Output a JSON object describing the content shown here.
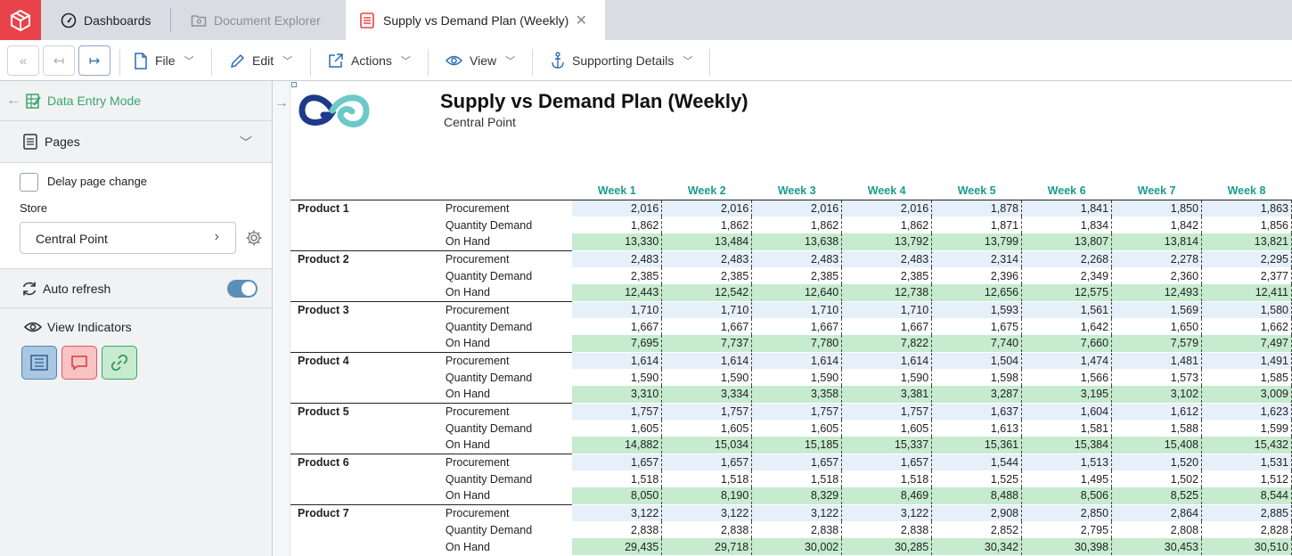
{
  "tabs": {
    "dashboards": "Dashboards",
    "document_explorer": "Document Explorer",
    "active": "Supply vs Demand Plan (Weekly)"
  },
  "toolbar": {
    "file": "File",
    "edit": "Edit",
    "actions": "Actions",
    "view": "View",
    "supporting": "Supporting Details"
  },
  "sidebar": {
    "mode": "Data Entry Mode",
    "pages": "Pages",
    "delay_label": "Delay page change",
    "store_label": "Store",
    "store_value": "Central Point",
    "auto_refresh": "Auto refresh",
    "auto_refresh_on": true,
    "view_indicators": "View Indicators"
  },
  "report": {
    "title": "Supply vs Demand Plan (Weekly)",
    "subtitle": "Central Point",
    "weeks": [
      "Week 1",
      "Week 2",
      "Week 3",
      "Week 4",
      "Week 5",
      "Week 6",
      "Week 7",
      "Week 8"
    ],
    "products": [
      {
        "name": "Product 1",
        "rows": [
          {
            "measure": "Procurement",
            "values": [
              "2,016",
              "2,016",
              "2,016",
              "2,016",
              "1,878",
              "1,841",
              "1,850",
              "1,863"
            ]
          },
          {
            "measure": "Quantity Demand",
            "values": [
              "1,862",
              "1,862",
              "1,862",
              "1,862",
              "1,871",
              "1,834",
              "1,842",
              "1,856"
            ]
          },
          {
            "measure": "On Hand",
            "values": [
              "13,330",
              "13,484",
              "13,638",
              "13,792",
              "13,799",
              "13,807",
              "13,814",
              "13,821"
            ]
          }
        ]
      },
      {
        "name": "Product 2",
        "rows": [
          {
            "measure": "Procurement",
            "values": [
              "2,483",
              "2,483",
              "2,483",
              "2,483",
              "2,314",
              "2,268",
              "2,278",
              "2,295"
            ]
          },
          {
            "measure": "Quantity Demand",
            "values": [
              "2,385",
              "2,385",
              "2,385",
              "2,385",
              "2,396",
              "2,349",
              "2,360",
              "2,377"
            ]
          },
          {
            "measure": "On Hand",
            "values": [
              "12,443",
              "12,542",
              "12,640",
              "12,738",
              "12,656",
              "12,575",
              "12,493",
              "12,411"
            ]
          }
        ]
      },
      {
        "name": "Product 3",
        "rows": [
          {
            "measure": "Procurement",
            "values": [
              "1,710",
              "1,710",
              "1,710",
              "1,710",
              "1,593",
              "1,561",
              "1,569",
              "1,580"
            ]
          },
          {
            "measure": "Quantity Demand",
            "values": [
              "1,667",
              "1,667",
              "1,667",
              "1,667",
              "1,675",
              "1,642",
              "1,650",
              "1,662"
            ]
          },
          {
            "measure": "On Hand",
            "values": [
              "7,695",
              "7,737",
              "7,780",
              "7,822",
              "7,740",
              "7,660",
              "7,579",
              "7,497"
            ]
          }
        ]
      },
      {
        "name": "Product 4",
        "rows": [
          {
            "measure": "Procurement",
            "values": [
              "1,614",
              "1,614",
              "1,614",
              "1,614",
              "1,504",
              "1,474",
              "1,481",
              "1,491"
            ]
          },
          {
            "measure": "Quantity Demand",
            "values": [
              "1,590",
              "1,590",
              "1,590",
              "1,590",
              "1,598",
              "1,566",
              "1,573",
              "1,585"
            ]
          },
          {
            "measure": "On Hand",
            "values": [
              "3,310",
              "3,334",
              "3,358",
              "3,381",
              "3,287",
              "3,195",
              "3,102",
              "3,009"
            ]
          }
        ]
      },
      {
        "name": "Product 5",
        "rows": [
          {
            "measure": "Procurement",
            "values": [
              "1,757",
              "1,757",
              "1,757",
              "1,757",
              "1,637",
              "1,604",
              "1,612",
              "1,623"
            ]
          },
          {
            "measure": "Quantity Demand",
            "values": [
              "1,605",
              "1,605",
              "1,605",
              "1,605",
              "1,613",
              "1,581",
              "1,588",
              "1,599"
            ]
          },
          {
            "measure": "On Hand",
            "values": [
              "14,882",
              "15,034",
              "15,185",
              "15,337",
              "15,361",
              "15,384",
              "15,408",
              "15,432"
            ]
          }
        ]
      },
      {
        "name": "Product 6",
        "rows": [
          {
            "measure": "Procurement",
            "values": [
              "1,657",
              "1,657",
              "1,657",
              "1,657",
              "1,544",
              "1,513",
              "1,520",
              "1,531"
            ]
          },
          {
            "measure": "Quantity Demand",
            "values": [
              "1,518",
              "1,518",
              "1,518",
              "1,518",
              "1,525",
              "1,495",
              "1,502",
              "1,512"
            ]
          },
          {
            "measure": "On Hand",
            "values": [
              "8,050",
              "8,190",
              "8,329",
              "8,469",
              "8,488",
              "8,506",
              "8,525",
              "8,544"
            ]
          }
        ]
      },
      {
        "name": "Product 7",
        "rows": [
          {
            "measure": "Procurement",
            "values": [
              "3,122",
              "3,122",
              "3,122",
              "3,122",
              "2,908",
              "2,850",
              "2,864",
              "2,885"
            ]
          },
          {
            "measure": "Quantity Demand",
            "values": [
              "2,838",
              "2,838",
              "2,838",
              "2,838",
              "2,852",
              "2,795",
              "2,808",
              "2,828"
            ]
          },
          {
            "measure": "On Hand",
            "values": [
              "29,435",
              "29,718",
              "30,002",
              "30,285",
              "30,342",
              "30,398",
              "30,453",
              "30,510"
            ]
          }
        ]
      }
    ]
  }
}
